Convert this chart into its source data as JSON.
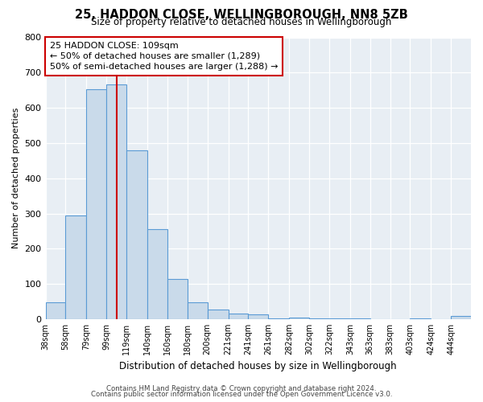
{
  "title": "25, HADDON CLOSE, WELLINGBOROUGH, NN8 5ZB",
  "subtitle": "Size of property relative to detached houses in Wellingborough",
  "xlabel": "Distribution of detached houses by size in Wellingborough",
  "ylabel": "Number of detached properties",
  "bar_labels": [
    "38sqm",
    "58sqm",
    "79sqm",
    "99sqm",
    "119sqm",
    "140sqm",
    "160sqm",
    "180sqm",
    "200sqm",
    "221sqm",
    "241sqm",
    "261sqm",
    "282sqm",
    "302sqm",
    "322sqm",
    "343sqm",
    "363sqm",
    "383sqm",
    "403sqm",
    "424sqm",
    "444sqm"
  ],
  "bar_values": [
    47,
    295,
    652,
    667,
    480,
    255,
    113,
    48,
    28,
    15,
    13,
    1,
    5,
    1,
    2,
    1,
    0,
    0,
    1,
    0,
    8
  ],
  "bar_color": "#c9daea",
  "bar_edge_color": "#5b9bd5",
  "vline_x": 109,
  "vline_color": "#cc0000",
  "annotation_text": "25 HADDON CLOSE: 109sqm\n← 50% of detached houses are smaller (1,289)\n50% of semi-detached houses are larger (1,288) →",
  "annotation_box_color": "#ffffff",
  "annotation_box_edge": "#cc0000",
  "ylim": [
    0,
    800
  ],
  "yticks": [
    0,
    100,
    200,
    300,
    400,
    500,
    600,
    700,
    800
  ],
  "footer_line1": "Contains HM Land Registry data © Crown copyright and database right 2024.",
  "footer_line2": "Contains public sector information licensed under the Open Government Licence v3.0.",
  "bg_color": "#ffffff",
  "plot_bg_color": "#e8eef4",
  "grid_color": "#ffffff",
  "bin_edges": [
    38,
    58,
    79,
    99,
    119,
    140,
    160,
    180,
    200,
    221,
    241,
    261,
    282,
    302,
    322,
    343,
    363,
    383,
    403,
    424,
    444,
    464
  ]
}
